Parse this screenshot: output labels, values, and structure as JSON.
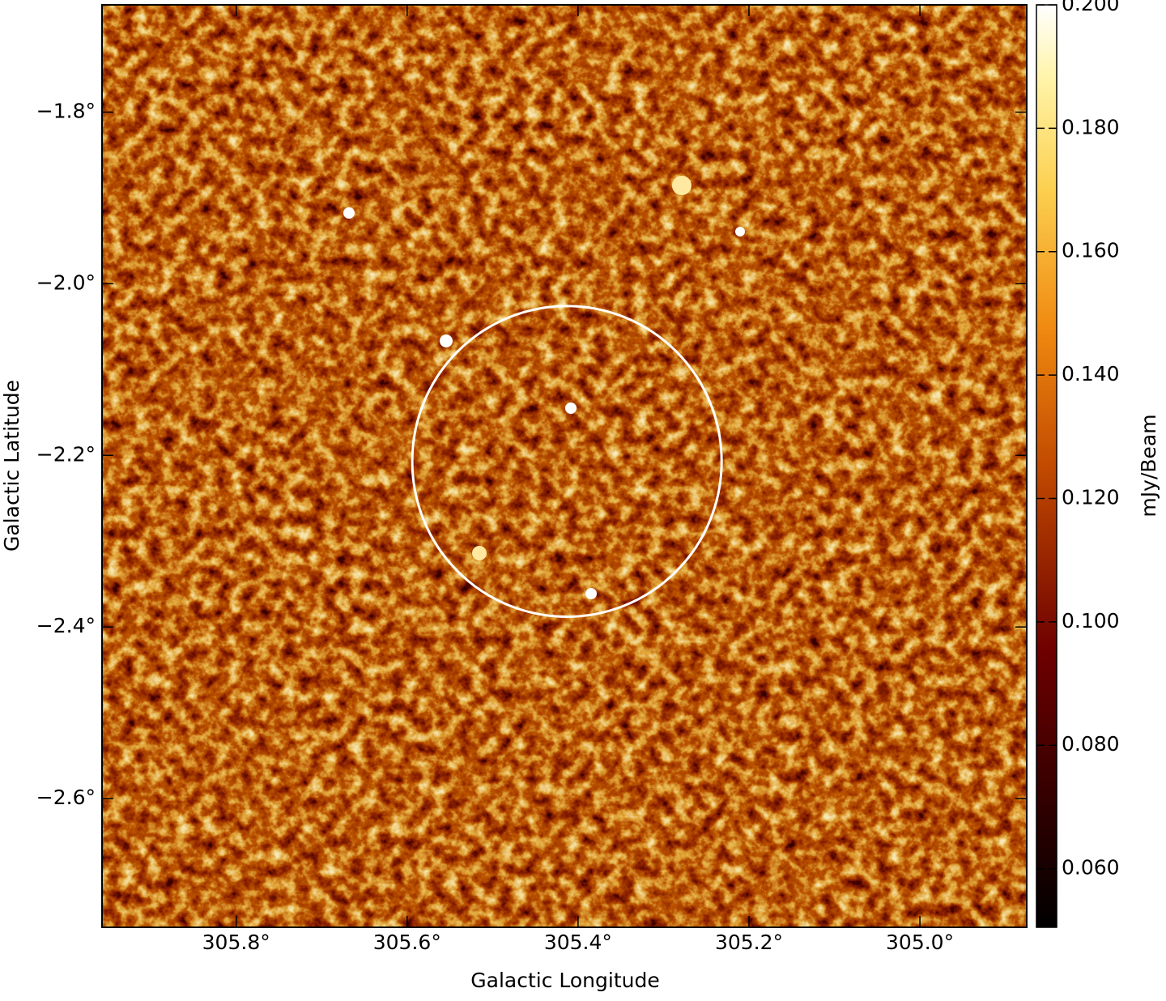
{
  "chart_data": {
    "type": "image",
    "xlabel": "Galactic Longitude",
    "ylabel": "Galactic Latitude",
    "xlim": [
      305.957,
      304.875
    ],
    "ylim": [
      -2.75,
      -1.675
    ],
    "xticks": [
      {
        "value": 305.8,
        "label": "305.8°"
      },
      {
        "value": 305.6,
        "label": "305.6°"
      },
      {
        "value": 305.4,
        "label": "305.4°"
      },
      {
        "value": 305.2,
        "label": "305.2°"
      },
      {
        "value": 305.0,
        "label": "305.0°"
      }
    ],
    "yticks": [
      {
        "value": -1.8,
        "label": "−1.8°"
      },
      {
        "value": -2.0,
        "label": "−2.0°"
      },
      {
        "value": -2.2,
        "label": "−2.2°"
      },
      {
        "value": -2.4,
        "label": "−2.4°"
      },
      {
        "value": -2.6,
        "label": "−2.6°"
      }
    ],
    "colorbar": {
      "label": "mJy/Beam",
      "lim": [
        0.0505,
        0.2
      ],
      "ticks": [
        {
          "value": 0.06,
          "label": "0.060"
        },
        {
          "value": 0.08,
          "label": "0.080"
        },
        {
          "value": 0.1,
          "label": "0.100"
        },
        {
          "value": 0.12,
          "label": "0.120"
        },
        {
          "value": 0.14,
          "label": "0.140"
        },
        {
          "value": 0.16,
          "label": "0.160"
        },
        {
          "value": 0.18,
          "label": "0.180"
        },
        {
          "value": 0.2,
          "label": "0.200"
        }
      ]
    },
    "circle": {
      "center": [
        305.413,
        -2.207
      ],
      "radius": 0.181,
      "color": "#ffffff"
    }
  }
}
